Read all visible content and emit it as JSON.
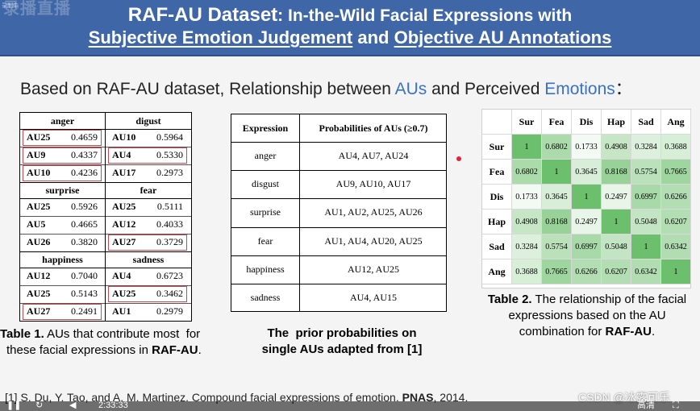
{
  "header": {
    "rec_badge": "录制中",
    "rec_logo": "录播直播",
    "title_part1": "RAF-AU Dataset",
    "title_part2": ": In-the-Wild Facial Expressions with",
    "line2_part1": "Subjective Emotion Judgement",
    "line2_and": " and ",
    "line2_part2": "Objective AU Annotations"
  },
  "subtitle": {
    "pre": "Based on RAF-AU dataset, Relationship between ",
    "aus": "AUs",
    "mid": " and Perceived ",
    "emotions": "Emotions",
    "post": "："
  },
  "table1": {
    "groups": [
      {
        "left": {
          "title": "anger",
          "rows": [
            [
              "AU25",
              "0.4659"
            ],
            [
              "AU9",
              "0.4337"
            ],
            [
              "AU10",
              "0.4236"
            ]
          ]
        },
        "right": {
          "title": "digust",
          "rows": [
            [
              "AU10",
              "0.5964"
            ],
            [
              "AU4",
              "0.5330"
            ],
            [
              "AU17",
              "0.2973"
            ]
          ]
        }
      },
      {
        "left": {
          "title": "surprise",
          "rows": [
            [
              "AU25",
              "0.5926"
            ],
            [
              "AU5",
              "0.4665"
            ],
            [
              "AU26",
              "0.3820"
            ]
          ]
        },
        "right": {
          "title": "fear",
          "rows": [
            [
              "AU25",
              "0.5111"
            ],
            [
              "AU12",
              "0.4033"
            ],
            [
              "AU27",
              "0.3729"
            ]
          ]
        }
      },
      {
        "left": {
          "title": "happiness",
          "rows": [
            [
              "AU12",
              "0.7040"
            ],
            [
              "AU25",
              "0.5143"
            ],
            [
              "AU27",
              "0.2491"
            ]
          ]
        },
        "right": {
          "title": "sadness",
          "rows": [
            [
              "AU4",
              "0.6723"
            ],
            [
              "AU25",
              "0.3462"
            ],
            [
              "AU1",
              "0.2979"
            ]
          ]
        }
      }
    ],
    "caption_label": "Table 1.",
    "caption_text1": " AUs that contribute most  for",
    "caption_text2": "these facial expressions in ",
    "caption_bold": "RAF-AU",
    "caption_end": "."
  },
  "table2": {
    "headers": [
      "Expression",
      "Probabilities of AUs (≥0.7)"
    ],
    "rows": [
      [
        "anger",
        "AU4, AU7, AU24"
      ],
      [
        "disgust",
        "AU9, AU10, AU17"
      ],
      [
        "surprise",
        "AU1, AU2, AU25, AU26"
      ],
      [
        "fear",
        "AU1, AU4, AU20, AU25"
      ],
      [
        "happiness",
        "AU12, AU25"
      ],
      [
        "sadness",
        "AU4, AU15"
      ]
    ],
    "caption_line1": "The  prior probabilities on",
    "caption_line2": "single AUs adapted from [1]"
  },
  "table3": {
    "labels": [
      "Sur",
      "Fea",
      "Dis",
      "Hap",
      "Sad",
      "Ang"
    ],
    "matrix": [
      [
        "1",
        "0.6802",
        "0.1733",
        "0.4908",
        "0.3284",
        "0.3688"
      ],
      [
        "0.6802",
        "1",
        "0.3645",
        "0.8168",
        "0.5754",
        "0.7665"
      ],
      [
        "0.1733",
        "0.3645",
        "1",
        "0.2497",
        "0.6997",
        "0.6266"
      ],
      [
        "0.4908",
        "0.8168",
        "0.2497",
        "1",
        "0.5048",
        "0.6207"
      ],
      [
        "0.3284",
        "0.5754",
        "0.6997",
        "0.5048",
        "1",
        "0.6342"
      ],
      [
        "0.3688",
        "0.7665",
        "0.6266",
        "0.6207",
        "0.6342",
        "1"
      ]
    ],
    "caption_label": "Table 2.",
    "caption_text1": " The relationship of the facial",
    "caption_text2": "expressions based on the AU",
    "caption_text3": "combination for ",
    "caption_bold": "RAF-AU",
    "caption_end": "."
  },
  "footer": {
    "ref_pre": "[1] S. Du, Y. Tao, and A. M. Martinez. Compound facial expressions of emotion. ",
    "ref_bold": "PNAS",
    "ref_end": ", 2014.",
    "watermark": "CSDN @冰露可乐",
    "time": "2:33:33",
    "quality": "高清"
  },
  "colors": {
    "header_bg": "#3f66a6",
    "accent_blue": "#3a72c4",
    "highlight_box": "#c84c54",
    "heat_diag": "#6cbf6c"
  }
}
